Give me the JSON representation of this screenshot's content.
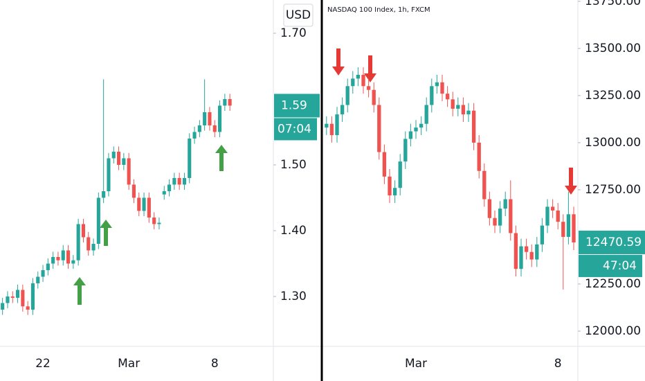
{
  "chart_data": [
    {
      "type": "candlestick",
      "currency": "USD",
      "categories": [
        null,
        null,
        null,
        null,
        null,
        null,
        null,
        null,
        "22",
        null,
        null,
        null,
        null,
        null,
        null,
        null,
        null,
        null,
        null,
        null,
        null,
        null,
        null,
        null,
        null,
        "Mar",
        null,
        null,
        null,
        null,
        null,
        null,
        null,
        null,
        null,
        null,
        null,
        null,
        null,
        null,
        null,
        null,
        "8",
        null,
        null,
        null
      ],
      "open": [
        1.28,
        1.29,
        1.3,
        1.298,
        1.31,
        1.285,
        1.28,
        1.32,
        1.33,
        1.34,
        1.35,
        1.36,
        1.355,
        1.37,
        1.35,
        1.355,
        1.41,
        1.39,
        1.37,
        1.38,
        1.45,
        1.46,
        1.51,
        1.52,
        1.5,
        1.51,
        1.47,
        1.45,
        1.43,
        1.45,
        1.42,
        1.41,
        1.455,
        1.46,
        1.47,
        1.48,
        1.47,
        1.48,
        1.54,
        1.55,
        1.56,
        1.58,
        1.56,
        1.55,
        1.59,
        1.6
      ],
      "high": [
        1.298,
        1.308,
        1.308,
        1.318,
        1.318,
        1.293,
        1.328,
        1.338,
        1.348,
        1.358,
        1.368,
        1.368,
        1.378,
        1.378,
        1.363,
        1.418,
        1.418,
        1.398,
        1.388,
        1.458,
        1.63,
        1.518,
        1.528,
        1.528,
        1.518,
        1.518,
        1.478,
        1.458,
        1.458,
        1.458,
        1.428,
        1.42,
        1.468,
        1.478,
        1.488,
        1.488,
        1.488,
        1.548,
        1.558,
        1.568,
        1.63,
        1.588,
        1.568,
        1.598,
        1.608,
        1.608
      ],
      "low": [
        1.272,
        1.282,
        1.29,
        1.29,
        1.277,
        1.272,
        1.272,
        1.312,
        1.322,
        1.332,
        1.342,
        1.347,
        1.347,
        1.342,
        1.342,
        1.347,
        1.382,
        1.362,
        1.362,
        1.372,
        1.442,
        1.452,
        1.502,
        1.492,
        1.492,
        1.462,
        1.442,
        1.422,
        1.422,
        1.412,
        1.402,
        1.402,
        1.447,
        1.452,
        1.462,
        1.462,
        1.462,
        1.472,
        1.532,
        1.542,
        1.552,
        1.552,
        1.542,
        1.542,
        1.582,
        1.582
      ],
      "close": [
        1.29,
        1.3,
        1.298,
        1.31,
        1.285,
        1.28,
        1.32,
        1.33,
        1.34,
        1.35,
        1.36,
        1.355,
        1.37,
        1.35,
        1.355,
        1.41,
        1.39,
        1.37,
        1.38,
        1.45,
        1.46,
        1.51,
        1.52,
        1.5,
        1.51,
        1.47,
        1.45,
        1.43,
        1.45,
        1.42,
        1.41,
        1.412,
        1.46,
        1.47,
        1.48,
        1.47,
        1.48,
        1.54,
        1.55,
        1.56,
        1.58,
        1.56,
        1.55,
        1.59,
        1.6,
        1.59
      ],
      "up_color": "#26a69a",
      "down_color": "#ef5350",
      "ylim": [
        1.2242,
        1.7505
      ],
      "yticks": [
        {
          "value": 1.3,
          "label": "1.30"
        },
        {
          "value": 1.4,
          "label": "1.40"
        },
        {
          "value": 1.5,
          "label": "1.50"
        },
        {
          "value": 1.7,
          "label": "1.70"
        }
      ],
      "last_price": 1.59,
      "countdown": "07:04"
    },
    {
      "type": "candlestick",
      "title": "NASDAQ 100 Index, 1h, FXCM",
      "categories": [
        null,
        null,
        null,
        null,
        null,
        null,
        null,
        null,
        null,
        null,
        null,
        null,
        null,
        null,
        null,
        null,
        null,
        "Mar",
        null,
        null,
        null,
        null,
        null,
        null,
        null,
        null,
        null,
        null,
        null,
        null,
        null,
        null,
        null,
        null,
        null,
        null,
        null,
        null,
        null,
        null,
        null,
        null,
        null,
        null,
        "8",
        null,
        null,
        null
      ],
      "open": [
        13080,
        13100,
        13040,
        13150,
        13200,
        13300,
        13340,
        13360,
        13300,
        13280,
        13200,
        12950,
        12820,
        12720,
        12760,
        12900,
        13020,
        13060,
        13080,
        13100,
        13200,
        13300,
        13320,
        13260,
        13230,
        13180,
        13200,
        13150,
        13170,
        13000,
        12850,
        12700,
        12600,
        12560,
        12650,
        12700,
        12520,
        12330,
        12450,
        12420,
        12380,
        12460,
        12560,
        12660,
        12640,
        12580,
        12500,
        12620
      ],
      "high": [
        13140,
        13140,
        13190,
        13240,
        13340,
        13380,
        13400,
        13400,
        13340,
        13320,
        13240,
        12990,
        12860,
        12800,
        12940,
        13060,
        13100,
        13120,
        13140,
        13240,
        13340,
        13360,
        13360,
        13300,
        13270,
        13240,
        13240,
        13210,
        13210,
        13040,
        12890,
        12740,
        12640,
        12690,
        12740,
        12800,
        12560,
        12490,
        12490,
        12460,
        12500,
        12600,
        12700,
        12700,
        12680,
        12620,
        12740,
        12660
      ],
      "low": [
        13040,
        13000,
        13000,
        13110,
        13160,
        13260,
        13300,
        13260,
        13240,
        13160,
        12910,
        12780,
        12680,
        12680,
        12720,
        12860,
        12980,
        13020,
        13040,
        13060,
        13160,
        13260,
        13220,
        13190,
        13140,
        13140,
        13110,
        13110,
        12960,
        12810,
        12660,
        12560,
        12520,
        12520,
        12610,
        12480,
        12290,
        12290,
        12380,
        12340,
        12340,
        12420,
        12520,
        12600,
        12540,
        12220,
        12460,
        12430
      ],
      "close": [
        13100,
        13040,
        13150,
        13200,
        13300,
        13340,
        13360,
        13300,
        13280,
        13200,
        12950,
        12820,
        12720,
        12760,
        12900,
        13020,
        13060,
        13080,
        13100,
        13200,
        13300,
        13320,
        13260,
        13230,
        13180,
        13200,
        13150,
        13170,
        13000,
        12850,
        12700,
        12600,
        12560,
        12650,
        12700,
        12520,
        12330,
        12450,
        12420,
        12380,
        12460,
        12560,
        12660,
        12640,
        12580,
        12500,
        12620,
        12470.59
      ],
      "up_color": "#26a69a",
      "down_color": "#ef5350",
      "ylim": [
        11919,
        13757
      ],
      "yticks": [
        {
          "value": 12000,
          "label": "12000.00"
        },
        {
          "value": 12250,
          "label": "12250.00"
        },
        {
          "value": 12750,
          "label": "12750.00"
        },
        {
          "value": 13000,
          "label": "13000.00"
        },
        {
          "value": 13250,
          "label": "13250.00"
        },
        {
          "value": 13500,
          "label": "13500.00"
        },
        {
          "value": 13750,
          "label": "13750.00"
        }
      ],
      "last_price": 12470.59,
      "countdown": "47:04"
    }
  ]
}
